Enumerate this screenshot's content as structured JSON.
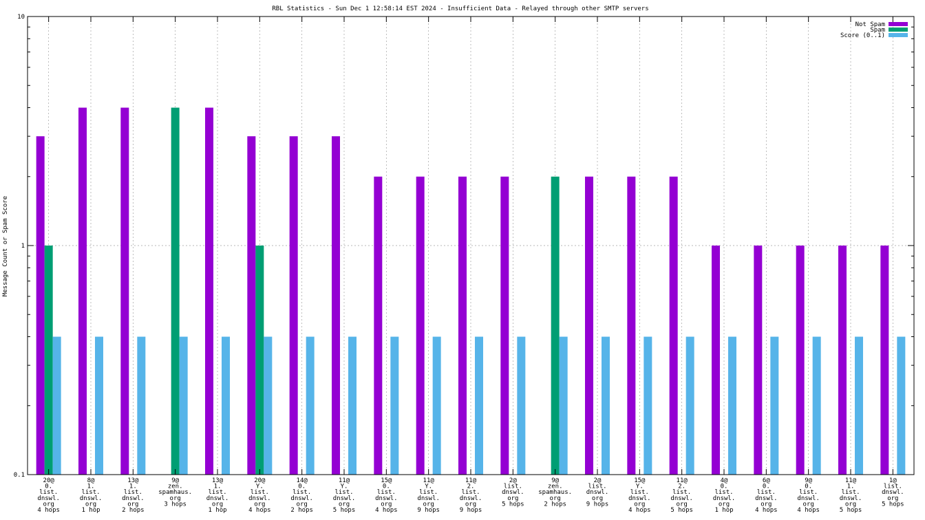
{
  "chart_data": {
    "type": "bar",
    "title": "RBL Statistics - Sun Dec  1 12:58:14 EST 2024 - Insufficient Data - Relayed through other SMTP servers",
    "ylabel": "Message Count or Spam Score",
    "xlabel": "",
    "yscale": "log",
    "ylim": [
      0.1,
      10
    ],
    "yticks": [
      "0.1",
      "1",
      "10"
    ],
    "grid": true,
    "legend_position": "top-right",
    "categories": [
      [
        "20@",
        "0.",
        "list.",
        "dnswl.",
        "org",
        "4 hops"
      ],
      [
        "8@",
        "1.",
        "list.",
        "dnswl.",
        "org",
        "1 hop"
      ],
      [
        "13@",
        "1.",
        "list.",
        "dnswl.",
        "org",
        "2 hops"
      ],
      [
        "9@",
        "zen.",
        "spamhaus.",
        "org",
        "3 hops"
      ],
      [
        "13@",
        "1.",
        "list.",
        "dnswl.",
        "org",
        "1 hop"
      ],
      [
        "20@",
        "Y.",
        "list.",
        "dnswl.",
        "org",
        "4 hops"
      ],
      [
        "14@",
        "0.",
        "list.",
        "dnswl.",
        "org",
        "2 hops"
      ],
      [
        "11@",
        "Y.",
        "list.",
        "dnswl.",
        "org",
        "5 hops"
      ],
      [
        "15@",
        "0.",
        "list.",
        "dnswl.",
        "org",
        "4 hops"
      ],
      [
        "11@",
        "Y.",
        "list.",
        "dnswl.",
        "org",
        "9 hops"
      ],
      [
        "11@",
        "2.",
        "list.",
        "dnswl.",
        "org",
        "9 hops"
      ],
      [
        "2@",
        "list.",
        "dnswl.",
        "org",
        "5 hops"
      ],
      [
        "9@",
        "zen.",
        "spamhaus.",
        "org",
        "2 hops"
      ],
      [
        "2@",
        "list.",
        "dnswl.",
        "org",
        "9 hops"
      ],
      [
        "15@",
        "Y.",
        "list.",
        "dnswl.",
        "org",
        "4 hops"
      ],
      [
        "11@",
        "2.",
        "list.",
        "dnswl.",
        "org",
        "5 hops"
      ],
      [
        "4@",
        "0.",
        "list.",
        "dnswl.",
        "org",
        "1 hop"
      ],
      [
        "6@",
        "0.",
        "list.",
        "dnswl.",
        "org",
        "4 hops"
      ],
      [
        "9@",
        "0.",
        "list.",
        "dnswl.",
        "org",
        "4 hops"
      ],
      [
        "11@",
        "1.",
        "list.",
        "dnswl.",
        "org",
        "5 hops"
      ],
      [
        "1@",
        "list.",
        "dnswl.",
        "org",
        "5 hops"
      ]
    ],
    "series": [
      {
        "name": "Not Spam",
        "color": "#9400d3",
        "values": [
          3,
          4,
          4,
          null,
          4,
          3,
          3,
          3,
          2,
          2,
          2,
          2,
          null,
          2,
          2,
          2,
          1,
          1,
          1,
          1,
          1
        ]
      },
      {
        "name": "Spam",
        "color": "#009e73",
        "values": [
          1,
          null,
          null,
          4,
          null,
          1,
          null,
          null,
          null,
          null,
          null,
          null,
          2,
          null,
          null,
          null,
          null,
          null,
          null,
          null,
          null
        ]
      },
      {
        "name": "Score (0..1)",
        "color": "#56b4e9",
        "values": [
          0.4,
          0.4,
          0.4,
          0.4,
          0.4,
          0.4,
          0.4,
          0.4,
          0.4,
          0.4,
          0.4,
          0.4,
          0.4,
          0.4,
          0.4,
          0.4,
          0.4,
          0.4,
          0.4,
          0.4,
          0.4
        ]
      }
    ]
  }
}
